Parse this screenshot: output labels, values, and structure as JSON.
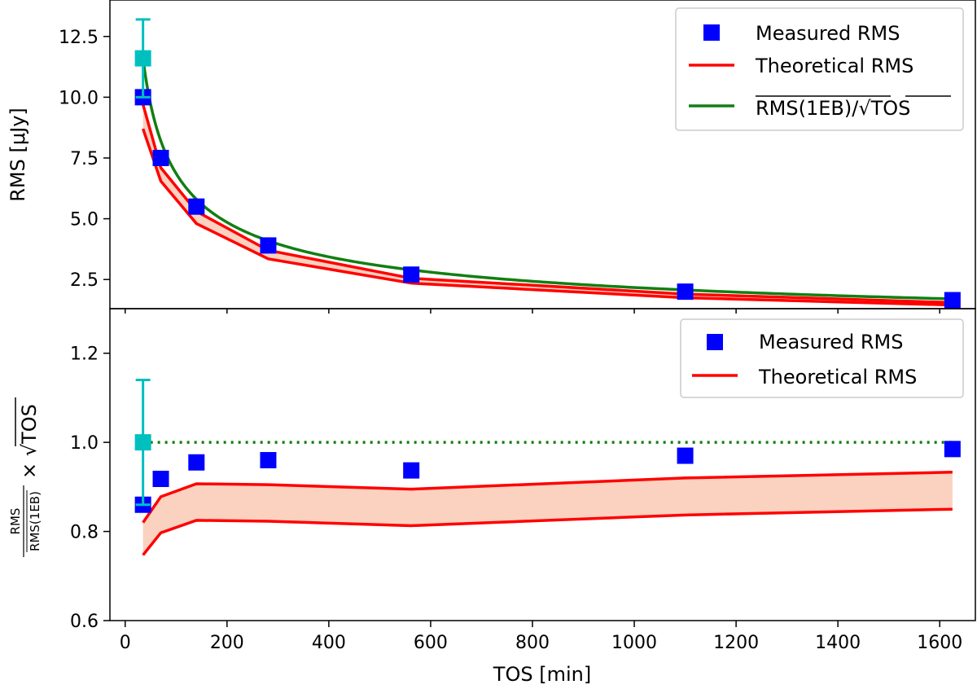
{
  "colors": {
    "measured": "#0000ff",
    "first_point": "#00bfbf",
    "theory": "#ff0000",
    "theory_fill": "#f9b99e",
    "model": "#117f11",
    "axis": "#000000"
  },
  "shared": {
    "xlabel": "TOS [min]",
    "xlim": [
      -30,
      1670
    ],
    "xticks": [
      0,
      200,
      400,
      600,
      800,
      1000,
      1200,
      1400,
      1600
    ],
    "xtick_labels": [
      "0",
      "200",
      "400",
      "600",
      "800",
      "1000",
      "1200",
      "1400",
      "1600"
    ]
  },
  "chart_data": [
    {
      "type": "scatter",
      "panel": "top",
      "ylabel": "RMS [μJy]",
      "ylim": [
        1.3,
        14.0
      ],
      "yticks": [
        2.5,
        5.0,
        7.5,
        10.0,
        12.5
      ],
      "ytick_labels": [
        "2.5",
        "5.0",
        "7.5",
        "10.0",
        "12.5"
      ],
      "x": [
        35,
        70,
        140,
        281,
        562,
        1100,
        1625
      ],
      "measured": [
        10.0,
        7.5,
        5.5,
        3.9,
        2.7,
        2.0,
        1.65
      ],
      "first_point": {
        "x": 35,
        "y": 11.6,
        "err": 1.6
      },
      "theory_upper": [
        9.7,
        7.1,
        5.3,
        3.7,
        2.55,
        1.9,
        1.55
      ],
      "theory_lower": [
        8.7,
        6.55,
        4.8,
        3.35,
        2.35,
        1.75,
        1.45
      ],
      "model_curve": {
        "amplitude": 11.6,
        "x0": 35,
        "x_end": 1625
      },
      "legend": [
        "Measured RMS",
        "Theoretical RMS",
        "RMS(1EB)/√TOS"
      ]
    },
    {
      "type": "scatter",
      "panel": "bottom",
      "ylabel_num": "RMS",
      "ylabel_den": "RMS(1EB)",
      "ylabel_suffix": "× √TOS",
      "ylim": [
        0.6,
        1.3
      ],
      "yticks": [
        0.6,
        0.8,
        1.0,
        1.2
      ],
      "ytick_labels": [
        "0.6",
        "0.8",
        "1.0",
        "1.2"
      ],
      "x": [
        35,
        70,
        140,
        281,
        562,
        1100,
        1625
      ],
      "measured": [
        0.86,
        0.918,
        0.955,
        0.96,
        0.937,
        0.97,
        0.985
      ],
      "first_point": {
        "x": 35,
        "y": 1.0,
        "err": 0.14
      },
      "theory_upper": [
        0.82,
        0.878,
        0.907,
        0.905,
        0.895,
        0.92,
        0.933
      ],
      "theory_lower": [
        0.747,
        0.797,
        0.825,
        0.823,
        0.813,
        0.837,
        0.85
      ],
      "reference_line": 1.0,
      "legend": [
        "Measured RMS",
        "Theoretical RMS"
      ]
    }
  ]
}
